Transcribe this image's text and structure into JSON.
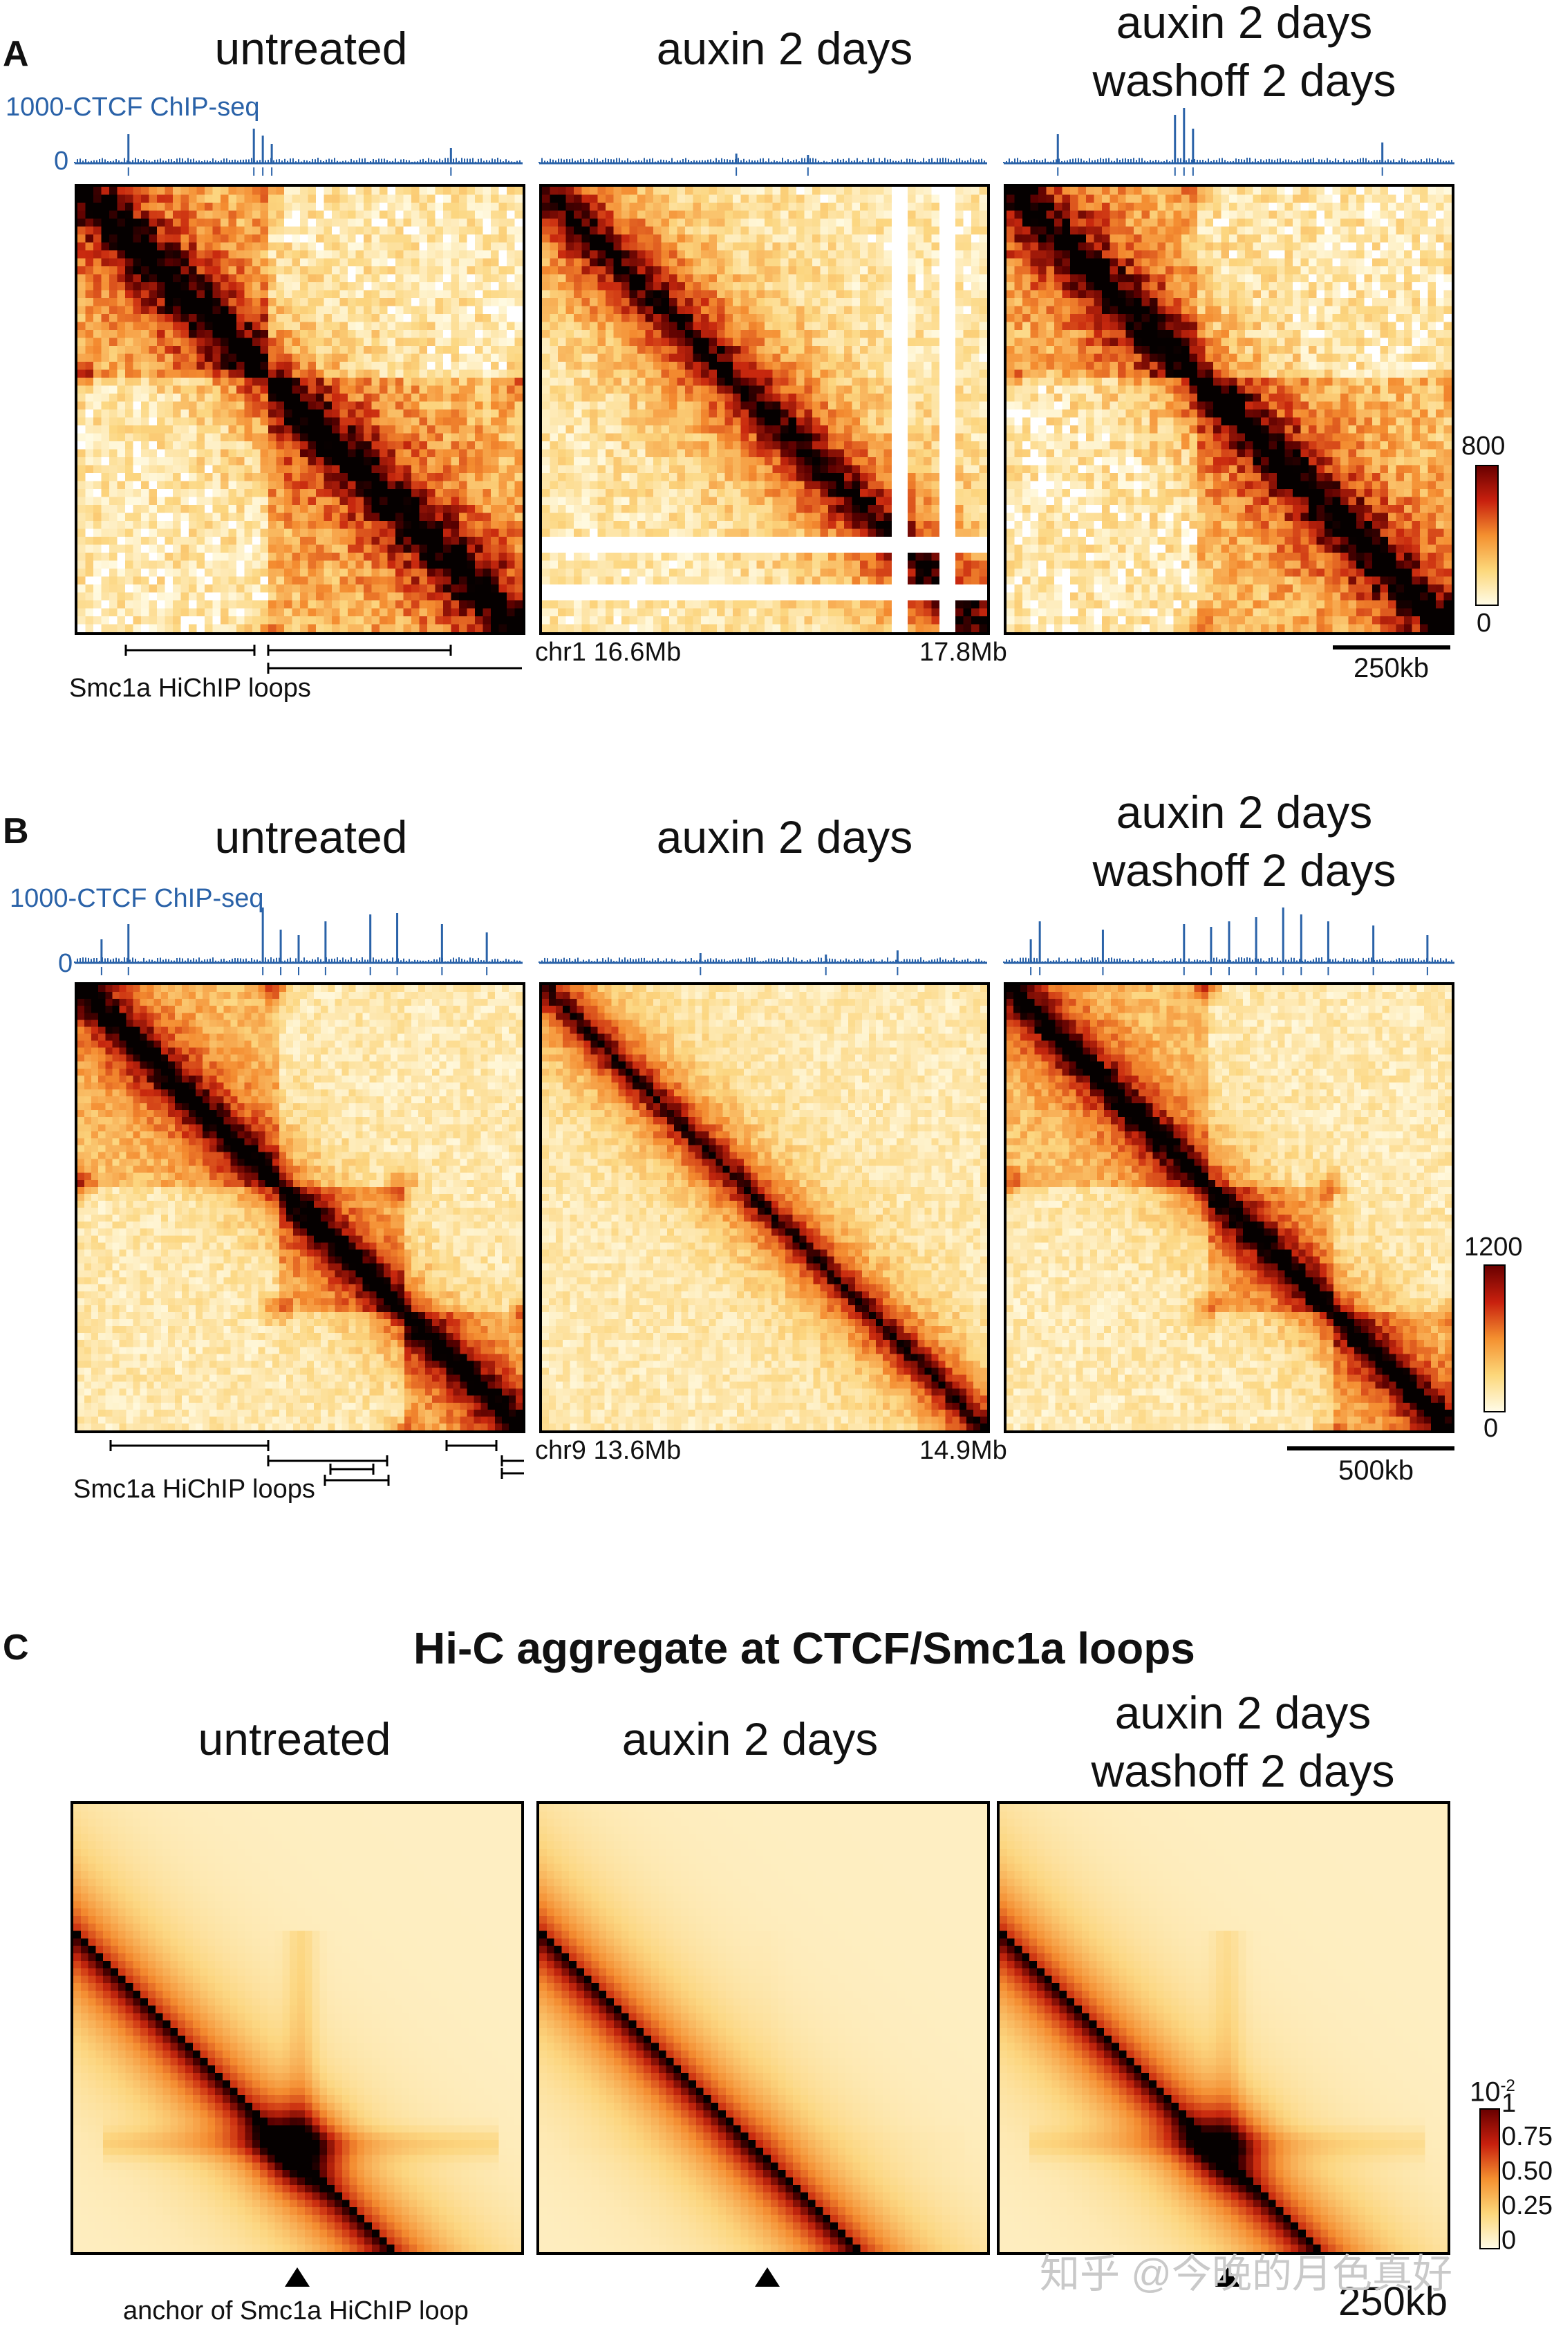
{
  "panels": [
    {
      "letter": "A",
      "conditions": [
        "untreated",
        "auxin 2 days",
        "auxin 2 days\nwashoff 2 days"
      ],
      "track": {
        "max_label": "1000",
        "name": "CTCF ChIP-seq",
        "min_label": "0"
      },
      "coord_chr": "chr1 16.6Mb",
      "coord_end": "17.8Mb",
      "loops_label": "Smc1a HiChIP loops",
      "scale_label": "250kb",
      "colorbar": {
        "max": "800",
        "min": "0"
      }
    },
    {
      "letter": "B",
      "conditions": [
        "untreated",
        "auxin 2 days",
        "auxin 2 days\nwashoff 2 days"
      ],
      "track": {
        "max_label": "1000",
        "name": "CTCF ChIP-seq",
        "min_label": "0"
      },
      "coord_chr": "chr9 13.6Mb",
      "coord_end": "14.9Mb",
      "loops_label": "Smc1a HiChIP loops",
      "scale_label": "500kb",
      "colorbar": {
        "max": "1200",
        "min": "0"
      }
    },
    {
      "letter": "C",
      "title": "Hi-C aggregate at CTCF/Smc1a loops",
      "conditions": [
        "untreated",
        "auxin 2 days",
        "auxin 2 days\nwashoff 2 days"
      ],
      "anchor_label": "anchor of Smc1a HiChIP loop",
      "scale_label": "250kb",
      "colorbar": {
        "exponent_base": "10",
        "exponent": "-2",
        "ticks": [
          "1",
          "0.75",
          "0.50",
          "0.25",
          "0"
        ]
      }
    }
  ],
  "watermark": "知乎 @今晚的月色真好",
  "chart_data": [
    {
      "type": "heatmap",
      "title": "A",
      "region": "chr1 16.6Mb - 17.8Mb",
      "series": [
        {
          "name": "untreated",
          "tad_boundaries_fraction": [
            0.0,
            0.42,
            1.0
          ],
          "loop_strength": 0.8
        },
        {
          "name": "auxin 2 days",
          "tad_boundaries_fraction": [],
          "loop_strength": 0.0
        },
        {
          "name": "auxin 2 days washoff 2 days",
          "tad_boundaries_fraction": [
            0.0,
            0.42,
            1.0
          ],
          "loop_strength": 0.7
        }
      ],
      "color_range": [
        0,
        800
      ],
      "colors": [
        "#fff6d0",
        "#fbc453",
        "#ef5a1a",
        "#a5150c",
        "#000000"
      ]
    },
    {
      "type": "heatmap",
      "title": "B",
      "region": "chr9 13.6Mb - 14.9Mb",
      "series": [
        {
          "name": "untreated",
          "tad_boundaries_fraction": [
            0.0,
            0.44,
            0.72,
            1.0
          ],
          "loop_strength": 0.8
        },
        {
          "name": "auxin 2 days",
          "tad_boundaries_fraction": [],
          "loop_strength": 0.0
        },
        {
          "name": "auxin 2 days washoff 2 days",
          "tad_boundaries_fraction": [
            0.0,
            0.44,
            0.72,
            1.0
          ],
          "loop_strength": 0.7
        }
      ],
      "color_range": [
        0,
        1200
      ]
    },
    {
      "type": "heatmap",
      "title": "Hi-C aggregate at CTCF/Smc1a loops",
      "series": [
        {
          "name": "untreated",
          "loop_peak": 0.9
        },
        {
          "name": "auxin 2 days",
          "loop_peak": 0.05
        },
        {
          "name": "auxin 2 days washoff 2 days",
          "loop_peak": 0.7
        }
      ],
      "color_range": [
        0,
        1
      ],
      "color_scale_label": "10^-2",
      "colorbar_ticks": [
        0,
        0.25,
        0.5,
        0.75,
        1
      ]
    }
  ]
}
